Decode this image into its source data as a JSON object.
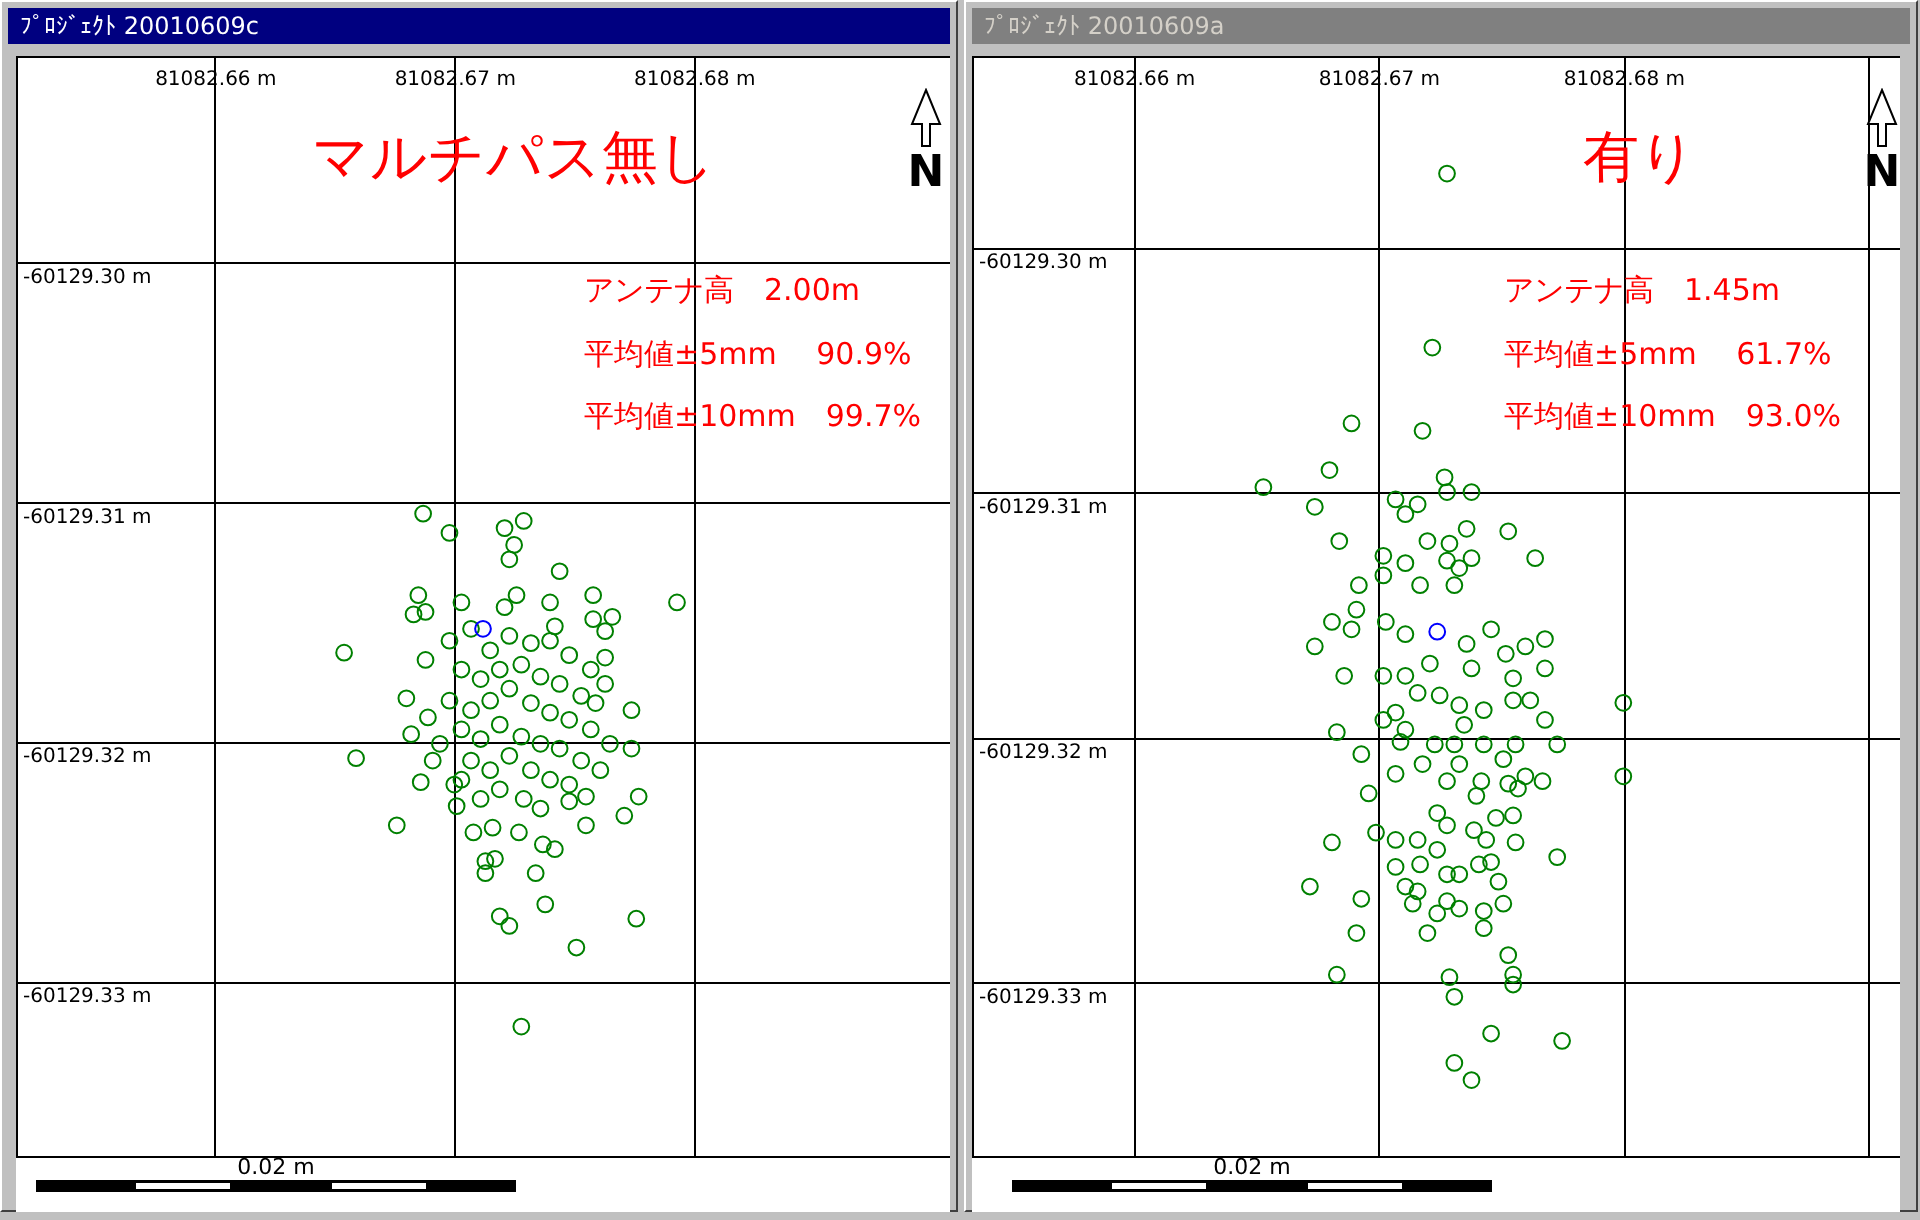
{
  "chart_data": [
    {
      "type": "scatter",
      "title": "ﾌﾟﾛｼﾞｪｸﾄ 20010609c",
      "annotations": [
        "マルチパス無し",
        "アンテナ高　2.00m",
        "平均値±5mm　 90.9%",
        "平均値±10mm　99.7%",
        "N",
        "0.02 m"
      ],
      "xlim": [
        81082.6517,
        81082.6907
      ],
      "ylim": [
        -60129.3373,
        -60129.2914
      ],
      "xticks": [
        {
          "value": 81082.66,
          "label": "81082.66 m"
        },
        {
          "value": 81082.67,
          "label": "81082.67 m"
        },
        {
          "value": 81082.68,
          "label": "81082.68 m"
        }
      ],
      "yticks": [
        {
          "value": -60129.3,
          "label": "-60129.30 m"
        },
        {
          "value": -60129.31,
          "label": "-60129.31 m"
        },
        {
          "value": -60129.32,
          "label": "-60129.32 m"
        },
        {
          "value": -60129.33,
          "label": "-60129.33 m"
        }
      ],
      "grid": true,
      "marker": "circle",
      "series": [
        {
          "color": "#008000",
          "x": [
            81082.6687,
            81082.6698,
            81082.6721,
            81082.6729,
            81082.6725,
            81082.6723,
            81082.6744,
            81082.6685,
            81082.6683,
            81082.6688,
            81082.6703,
            81082.6721,
            81082.6726,
            81082.674,
            81082.6758,
            81082.6758,
            81082.6766,
            81082.6763,
            81082.6793,
            81082.6654,
            81082.6742,
            81082.6688,
            81082.668,
            81082.6689,
            81082.6682,
            81082.6763,
            81082.6763,
            81082.6774,
            81082.6774,
            81082.6659,
            81082.6691,
            81082.6686,
            81082.6676,
            81082.6701,
            81082.6708,
            81082.6716,
            81082.6727,
            81082.6713,
            81082.6717,
            81082.6713,
            81082.6734,
            81082.6737,
            81082.6742,
            81082.6755,
            81082.6771,
            81082.6777,
            81082.6755,
            81082.6748,
            81082.6738,
            81082.6719,
            81082.6723,
            81082.6776,
            81082.6751,
            81082.6728,
            81082.67,
            81082.6698,
            81082.6707,
            81082.6715,
            81082.6723,
            81082.6732,
            81082.674,
            81082.6748,
            81082.6757,
            81082.6703,
            81082.6711,
            81082.6719,
            81082.6728,
            81082.6736,
            81082.6744,
            81082.6753,
            81082.6698,
            81082.6707,
            81082.6715,
            81082.6723,
            81082.6732,
            81082.674,
            81082.6748,
            81082.6757,
            81082.6703,
            81082.6711,
            81082.6719,
            81082.6728,
            81082.6736,
            81082.6744,
            81082.6753,
            81082.6761,
            81082.6707,
            81082.6715,
            81082.6723,
            81082.6732,
            81082.674,
            81082.6748,
            81082.6719,
            81082.6729,
            81082.6736,
            81082.6711,
            81082.6694,
            81082.6703,
            81082.6765,
            81082.6759
          ],
          "values": [
            -60129.3105,
            -60129.3113,
            -60129.3111,
            -60129.3108,
            -60129.3118,
            -60129.3124,
            -60129.3129,
            -60129.3139,
            -60129.3147,
            -60129.3146,
            -60129.3142,
            -60129.3144,
            -60129.3139,
            -60129.3142,
            -60129.3139,
            -60129.3149,
            -60129.3148,
            -60129.3154,
            -60129.3142,
            -60129.3163,
            -60129.3152,
            -60129.3166,
            -60129.3182,
            -60129.319,
            -60129.3197,
            -60129.3165,
            -60129.3176,
            -60129.3187,
            -60129.3203,
            -60129.3207,
            -60129.3208,
            -60129.3217,
            -60129.3235,
            -60129.3227,
            -60129.3238,
            -60129.3236,
            -60129.3238,
            -60129.325,
            -60129.3249,
            -60129.3255,
            -60129.3255,
            -60129.3243,
            -60129.3245,
            -60129.3235,
            -60129.3231,
            -60129.3223,
            -60129.3223,
            -60129.3225,
            -60129.3268,
            -60129.3273,
            -60129.3277,
            -60129.3274,
            -60129.3286,
            -60129.3319,
            -60129.3218,
            -60129.3158,
            -60129.3153,
            -60129.3162,
            -60129.3156,
            -60129.3159,
            -60129.3158,
            -60129.3164,
            -60129.317,
            -60129.317,
            -60129.3174,
            -60129.317,
            -60129.3168,
            -60129.3173,
            -60129.3176,
            -60129.3181,
            -60129.3183,
            -60129.3187,
            -60129.3183,
            -60129.3178,
            -60129.3184,
            -60129.3188,
            -60129.3191,
            -60129.3195,
            -60129.3195,
            -60129.3199,
            -60129.3193,
            -60129.3198,
            -60129.3201,
            -60129.3203,
            -60129.3208,
            -60129.3212,
            -60129.3208,
            -60129.3212,
            -60129.3206,
            -60129.3212,
            -60129.3216,
            -60129.3218,
            -60129.322,
            -60129.3224,
            -60129.3228,
            -60129.3224,
            -60129.3201,
            -60129.3216,
            -60129.3201,
            -60129.3184
          ]
        },
        {
          "color": "#0000ff",
          "x": [
            81082.6712
          ],
          "values": [
            -60129.3153
          ]
        }
      ]
    },
    {
      "type": "scatter",
      "title": "ﾌﾟﾛｼﾞｪｸﾄ 20010609a",
      "annotations": [
        "有り",
        "アンテナ高　1.45m",
        "平均値±5mm　 61.7%",
        "平均値±10mm　93.0%",
        "N",
        "0.02 m"
      ],
      "xlim": [
        81082.6534,
        81082.6913
      ],
      "ylim": [
        -60129.3371,
        -60129.2922
      ],
      "xticks": [
        {
          "value": 81082.66,
          "label": "81082.66 m"
        },
        {
          "value": 81082.67,
          "label": "81082.67 m"
        },
        {
          "value": 81082.68,
          "label": "81082.68 m"
        },
        {
          "value": 81082.69,
          "label": null
        }
      ],
      "yticks": [
        {
          "value": -60129.3,
          "label": "-60129.30 m"
        },
        {
          "value": -60129.31,
          "label": "-60129.31 m"
        },
        {
          "value": -60129.32,
          "label": "-60129.32 m"
        },
        {
          "value": -60129.33,
          "label": "-60129.33 m"
        }
      ],
      "grid": true,
      "marker": "circle",
      "series": [
        {
          "color": "#008000",
          "x": [
            81082.6728,
            81082.6722,
            81082.6689,
            81082.6718,
            81082.668,
            81082.6653,
            81082.6674,
            81082.6727,
            81082.6728,
            81082.6738,
            81082.6707,
            81082.6711,
            81082.6716,
            81082.6684,
            81082.672,
            81082.6729,
            81082.6736,
            81082.6753,
            81082.6764,
            81082.6702,
            81082.6711,
            81082.6728,
            81082.6738,
            81082.6733,
            81082.6692,
            81082.6702,
            81082.6717,
            81082.6731,
            81082.6681,
            81082.6689,
            81082.6691,
            81082.6674,
            81082.6686,
            81082.6702,
            81082.6703,
            81082.6711,
            81082.6711,
            81082.6721,
            81082.6736,
            81082.6746,
            81082.6752,
            81082.676,
            81082.6768,
            81082.6768,
            81082.6738,
            81082.6755,
            81082.68,
            81082.6716,
            81082.6725,
            81082.6733,
            81082.6743,
            81082.6755,
            81082.6762,
            81082.6707,
            81082.6702,
            81082.6768,
            81082.6683,
            81082.6693,
            81082.6711,
            81082.6709,
            81082.6723,
            81082.6731,
            81082.6735,
            81082.6743,
            81082.6751,
            81082.6756,
            81082.6773,
            81082.6718,
            81082.6733,
            81082.6707,
            81082.6728,
            81082.6742,
            81082.6753,
            81082.676,
            81082.6767,
            81082.68,
            81082.6696,
            81082.674,
            81082.6757,
            81082.6724,
            81082.6728,
            81082.6748,
            81082.6755,
            81082.6739,
            81082.6681,
            81082.6699,
            81082.6707,
            81082.6716,
            81082.6724,
            81082.6744,
            81082.6756,
            81082.6773,
            81082.6707,
            81082.6717,
            81082.6728,
            81082.6733,
            81082.6741,
            81082.6746,
            81082.6749,
            81082.6672,
            81082.6711,
            81082.6716,
            81082.6693,
            81082.6714,
            81082.6728,
            81082.6733,
            81082.6724,
            81082.6743,
            81082.6751,
            81082.6691,
            81082.672,
            81082.6743,
            81082.6753,
            81082.6683,
            81082.6729,
            81082.6755,
            81082.6755,
            81082.6731,
            81082.6746,
            81082.6775,
            81082.6731,
            81082.6738
          ],
          "values": [
            -60129.297,
            -60129.3041,
            -60129.3072,
            -60129.3075,
            -60129.3091,
            -60129.3098,
            -60129.3106,
            -60129.3094,
            -60129.31,
            -60129.31,
            -60129.3103,
            -60129.3109,
            -60129.3105,
            -60129.312,
            -60129.312,
            -60129.3121,
            -60129.3115,
            -60129.3116,
            -60129.3127,
            -60129.3126,
            -60129.3129,
            -60129.3128,
            -60129.3127,
            -60129.3131,
            -60129.3138,
            -60129.3134,
            -60129.3138,
            -60129.3138,
            -60129.3153,
            -60129.3156,
            -60129.3148,
            -60129.3163,
            -60129.3175,
            -60129.3175,
            -60129.3153,
            -60129.3158,
            -60129.3175,
            -60129.317,
            -60129.3162,
            -60129.3156,
            -60129.3166,
            -60129.3163,
            -60129.316,
            -60129.3172,
            -60129.3172,
            -60129.3176,
            -60129.3186,
            -60129.3182,
            -60129.3183,
            -60129.3187,
            -60129.3189,
            -60129.3185,
            -60129.3185,
            -60129.319,
            -60129.3193,
            -60129.3193,
            -60129.3198,
            -60129.3207,
            -60129.3197,
            -60129.3202,
            -60129.3203,
            -60129.3203,
            -60129.3195,
            -60129.3203,
            -60129.3209,
            -60129.3203,
            -60129.3203,
            -60129.3211,
            -60129.3211,
            -60129.3215,
            -60129.3218,
            -60129.3218,
            -60129.3219,
            -60129.3216,
            -60129.3218,
            -60129.3216,
            -60129.3223,
            -60129.3224,
            -60129.3221,
            -60129.3231,
            -60129.3236,
            -60129.3233,
            -60129.3232,
            -60129.3238,
            -60129.3243,
            -60129.3239,
            -60129.3242,
            -60129.3242,
            -60129.3246,
            -60129.3242,
            -60129.3243,
            -60129.3249,
            -60129.3253,
            -60129.3252,
            -60129.3256,
            -60129.3256,
            -60129.3252,
            -60129.3251,
            -60129.3259,
            -60129.3261,
            -60129.3261,
            -60129.3263,
            -60129.3266,
            -60129.3268,
            -60129.3267,
            -60129.327,
            -60129.3272,
            -60129.3271,
            -60129.3268,
            -60129.328,
            -60129.328,
            -60129.3278,
            -60129.3289,
            -60129.3297,
            -60129.3298,
            -60129.3297,
            -60129.3301,
            -60129.3306,
            -60129.3321,
            -60129.3324,
            -60129.3333,
            -60129.334
          ]
        },
        {
          "color": "#0000ff",
          "x": [
            81082.6724
          ],
          "values": [
            -60129.3157
          ]
        }
      ]
    }
  ]
}
